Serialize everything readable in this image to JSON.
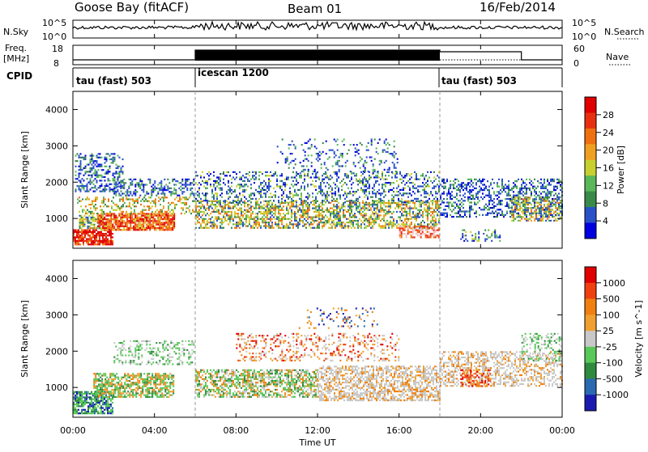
{
  "header": {
    "station": "Goose Bay (fitACF)",
    "beam": "Beam 01",
    "date": "16/Feb/2014"
  },
  "side_labels": {
    "nsky": "N.Sky",
    "nsearch": "N.Search",
    "freq": "Freq.",
    "freq_unit": "[MHz]",
    "nave": "Nave",
    "cpid": "CPID"
  },
  "top_panels": {
    "noise_ticks_left": [
      "10^5",
      "10^0"
    ],
    "noise_ticks_right": [
      "10^5",
      "10^0"
    ],
    "freq_ticks_left": [
      "18",
      "8"
    ],
    "nave_ticks_right": [
      "60",
      "0"
    ]
  },
  "cpid_segments": [
    {
      "label": "tau (fast) 503",
      "start_hour": 0
    },
    {
      "label": "icescan 1200",
      "start_hour": 6
    },
    {
      "label": "tau (fast) 503",
      "start_hour": 18
    }
  ],
  "chart_data": [
    {
      "type": "heatmap",
      "name": "power",
      "ylabel": "Slant Range [km]",
      "yticks": [
        "4000",
        "3000",
        "2000",
        "1000"
      ],
      "ylim": [
        180,
        4500
      ],
      "colorbar_label": "Power [dB]",
      "colorbar_ticks": [
        "28",
        "24",
        "20",
        "16",
        "12",
        "8",
        "4"
      ],
      "colors": [
        "#0000e0",
        "#2a52c8",
        "#3a8a4a",
        "#5ab85a",
        "#c8d030",
        "#f0a020",
        "#f07010",
        "#e83010",
        "#e00000"
      ]
    },
    {
      "type": "heatmap",
      "name": "velocity",
      "ylabel": "Slant Range [km]",
      "yticks": [
        "4000",
        "3000",
        "2000",
        "1000"
      ],
      "ylim": [
        180,
        4500
      ],
      "colorbar_label": "Velocity [m s^-1]",
      "colorbar_ticks": [
        "1000",
        "500",
        "100",
        "25",
        "-25",
        "-100",
        "-500",
        "-1000"
      ],
      "colors": [
        "#1a1ab0",
        "#2a6ab0",
        "#2e8a3e",
        "#58c858",
        "#c8c8c8",
        "#f0a030",
        "#f08010",
        "#f04010",
        "#e00000"
      ]
    }
  ],
  "xaxis": {
    "ticks": [
      "00:00",
      "04:00",
      "08:00",
      "12:00",
      "16:00",
      "20:00",
      "00:00"
    ],
    "label": "Time UT"
  }
}
